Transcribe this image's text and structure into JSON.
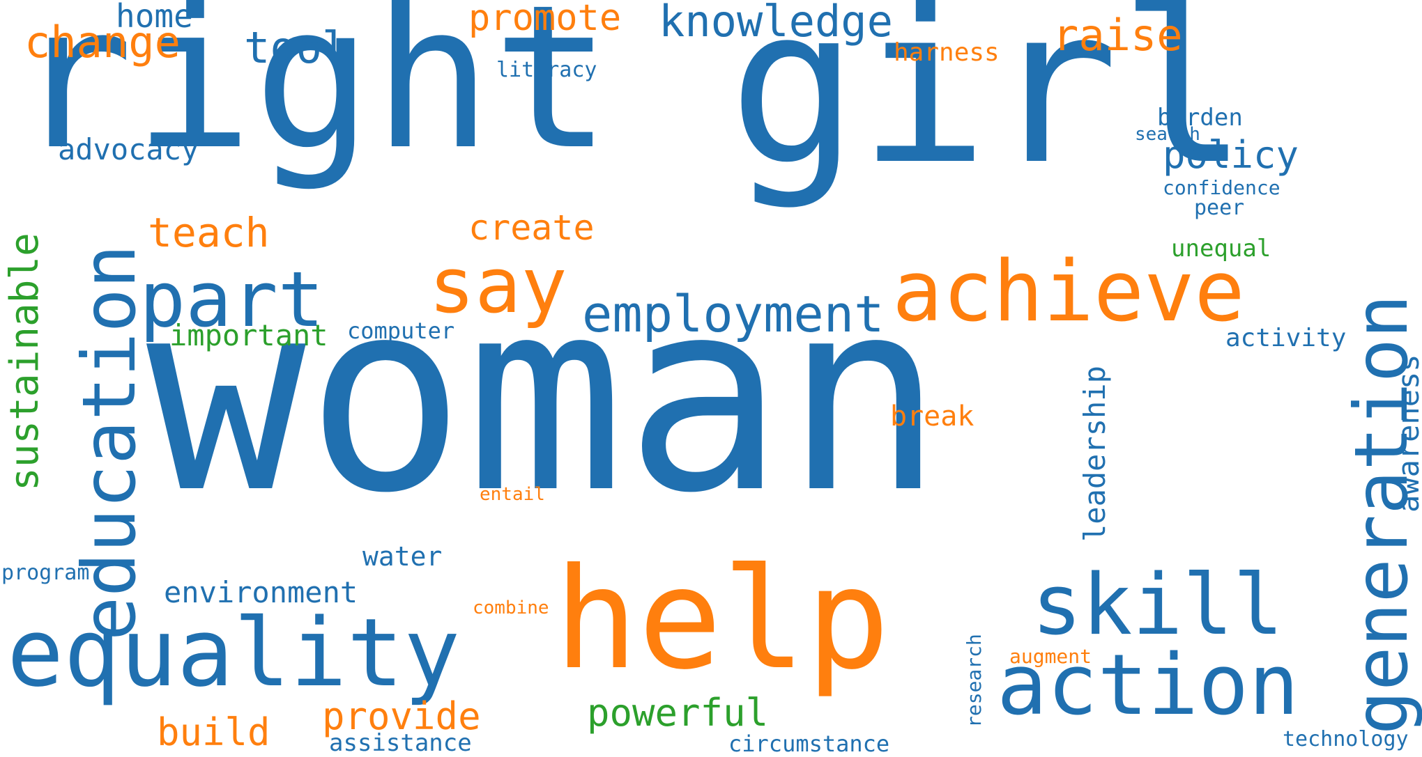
{
  "colors": {
    "blue": "#2070b0",
    "orange": "#ff7f0e",
    "green": "#2ca02c"
  },
  "words": {
    "woman": "woman",
    "right": "right",
    "girl": "girl",
    "help": "help",
    "equality": "equality",
    "action": "action",
    "achieve": "achieve",
    "education": "education",
    "generation": "generation",
    "skill": "skill",
    "part": "part",
    "say": "say",
    "employment": "employment",
    "knowledge": "knowledge",
    "change": "change",
    "tool": "tool",
    "home": "home",
    "promote": "promote",
    "raise": "raise",
    "harness": "harness",
    "literacy": "literacy",
    "advocacy": "advocacy",
    "teach": "teach",
    "create": "create",
    "policy": "policy",
    "burden": "burden",
    "search": "search",
    "confidence": "confidence",
    "peer": "peer",
    "unequal": "unequal",
    "sustainable": "sustainable",
    "important": "important",
    "computer": "computer",
    "activity": "activity",
    "awareness": "awareness",
    "leadership": "leadership",
    "break": "break",
    "entail": "entail",
    "water": "water",
    "program": "program",
    "environment": "environment",
    "combine": "combine",
    "research": "research",
    "augment": "augment",
    "provide": "provide",
    "build": "build",
    "powerful": "powerful",
    "assistance": "assistance",
    "circumstance": "circumstance",
    "technology": "technology"
  }
}
